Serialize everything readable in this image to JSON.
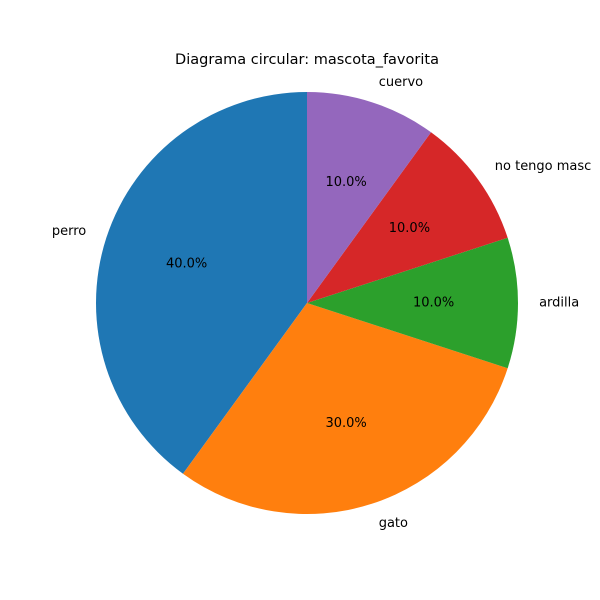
{
  "chart_data": {
    "type": "pie",
    "title": "Diagrama circular: mascota_favorita",
    "categories": [
      "perro",
      "gato",
      "ardilla",
      "no tengo masc",
      "cuervo"
    ],
    "values": [
      40.0,
      30.0,
      10.0,
      10.0,
      10.0
    ],
    "percent_labels": [
      "40.0%",
      "30.0%",
      "10.0%",
      "10.0%",
      "10.0%"
    ],
    "colors": [
      "#1f77b4",
      "#ff7f0e",
      "#2ca02c",
      "#d62728",
      "#9467bd"
    ],
    "start_angle_deg": 90,
    "direction": "counterclockwise",
    "legend": "none"
  }
}
